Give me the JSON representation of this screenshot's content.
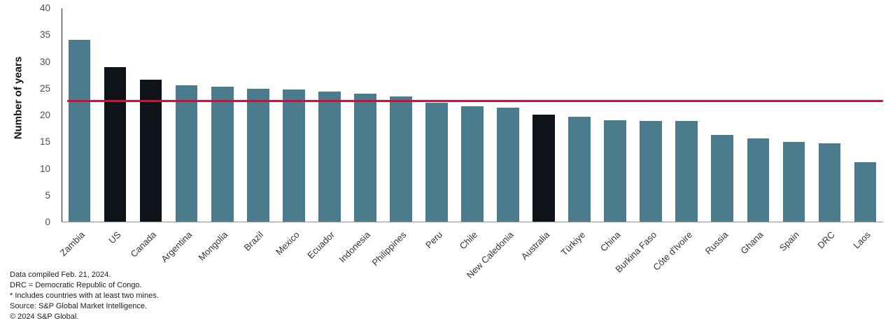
{
  "chart_data": {
    "type": "bar",
    "title": "",
    "xlabel": "",
    "ylabel": "Number of years",
    "ylim": [
      0,
      40
    ],
    "yticks": [
      0,
      5,
      10,
      15,
      20,
      25,
      30,
      35,
      40
    ],
    "grid": false,
    "legend_position": "none",
    "categories": [
      "Zambia",
      "US",
      "Canada",
      "Argentina",
      "Mongolia",
      "Brazil",
      "Mexico",
      "Ecuador",
      "Indonesia",
      "Philippines",
      "Peru",
      "Chile",
      "New Caledonia",
      "Australia",
      "Türkiye",
      "China",
      "Burkina Faso",
      "Côte d'Ivoire",
      "Russia",
      "Ghana",
      "Spain",
      "DRC",
      "Laos"
    ],
    "values": [
      34.1,
      29.0,
      26.7,
      25.6,
      25.4,
      25.0,
      24.8,
      24.5,
      24.0,
      23.5,
      22.4,
      21.7,
      21.5,
      20.1,
      19.7,
      19.1,
      19.0,
      19.0,
      16.3,
      15.7,
      15.0,
      14.8,
      11.3
    ],
    "highlighted_categories": [
      "US",
      "Canada",
      "Australia"
    ],
    "average_line_value": 22.7,
    "colors": {
      "bar": "#4a7c8e",
      "highlight_bar": "#0d1318",
      "average_line": "#d0103c",
      "axis": "#1f1f1f"
    }
  },
  "footnotes": [
    "Data compiled Feb. 21, 2024.",
    "DRC = Democratic Republic of Congo.",
    "* Includes countries with at least two mines.",
    "Source: S&P Global Market Intelligence.",
    "© 2024 S&P Global."
  ]
}
